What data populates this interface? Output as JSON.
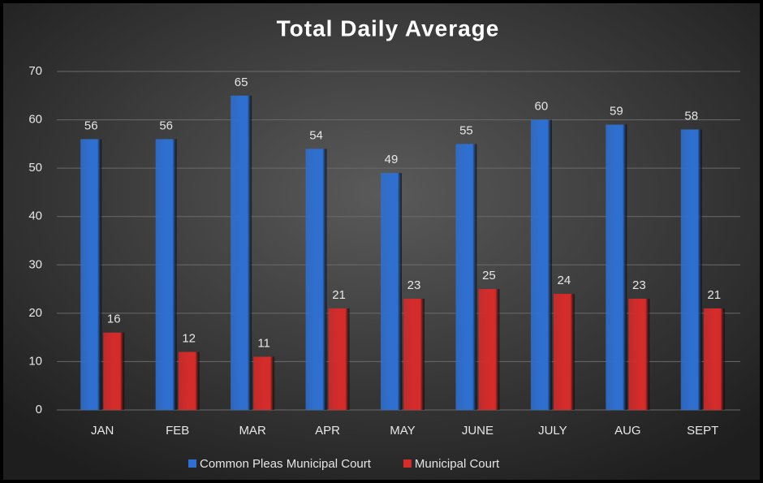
{
  "chart_data": {
    "type": "bar",
    "title": "Total Daily Average",
    "categories": [
      "JAN",
      "FEB",
      "MAR",
      "APR",
      "MAY",
      "JUNE",
      "JULY",
      "AUG",
      "SEPT"
    ],
    "series": [
      {
        "name": "Common Pleas Municipal Court",
        "color": "#2f6fd0",
        "values": [
          56,
          56,
          65,
          54,
          49,
          55,
          60,
          59,
          58
        ]
      },
      {
        "name": "Municipal Court",
        "color": "#d42b2b",
        "values": [
          16,
          12,
          11,
          21,
          23,
          25,
          24,
          23,
          21
        ]
      }
    ],
    "ylim": [
      0,
      70
    ],
    "yticks": [
      0,
      10,
      20,
      30,
      40,
      50,
      60,
      70
    ],
    "grid": true,
    "legend": "bottom"
  }
}
